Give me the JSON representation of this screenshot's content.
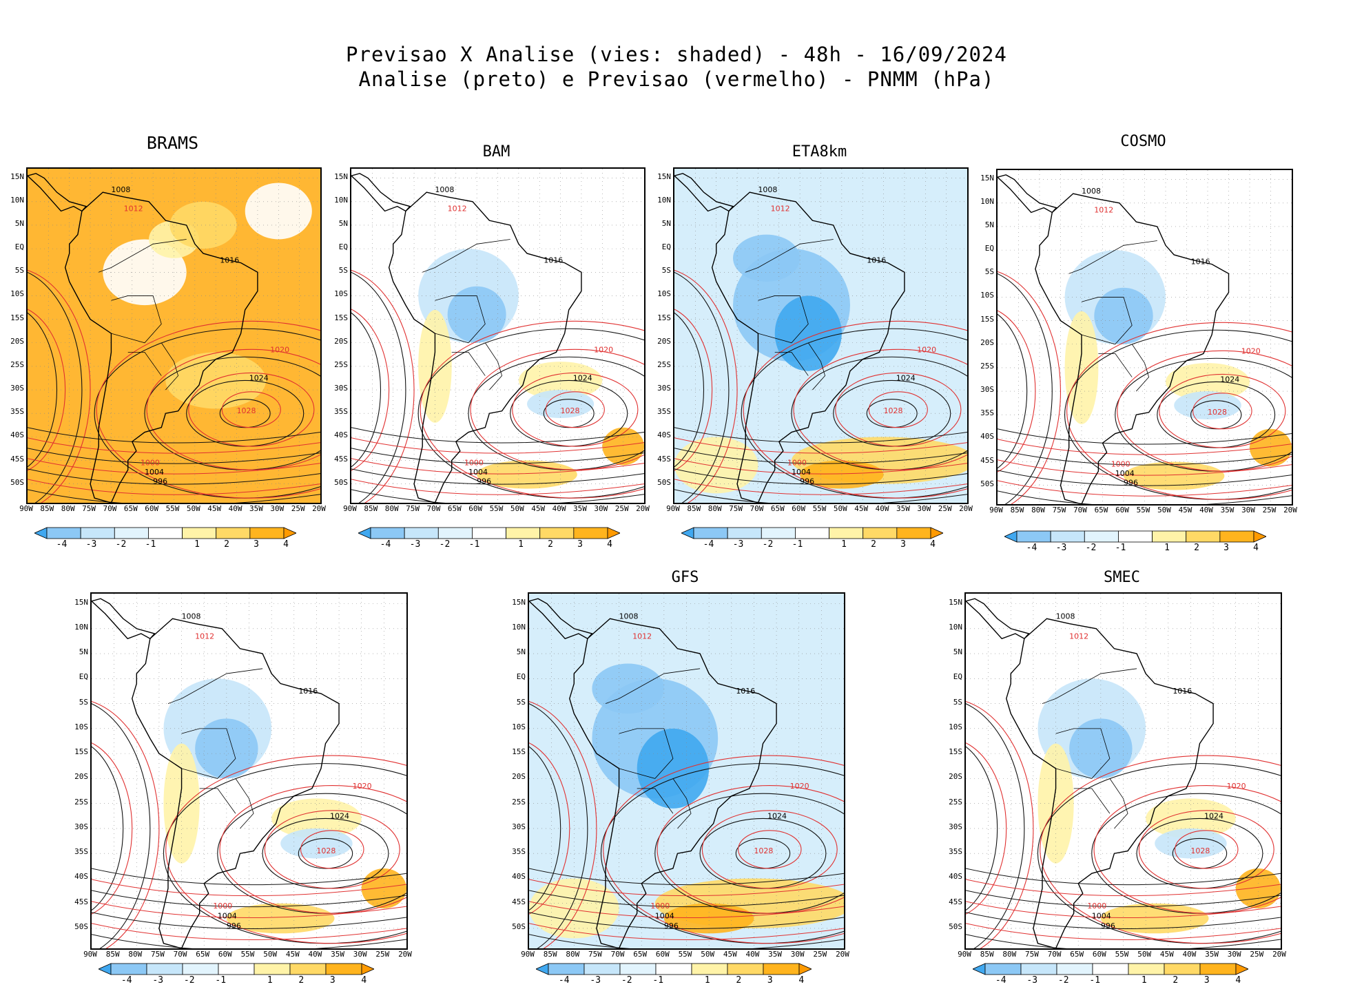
{
  "header": {
    "line1": "Previsao X Analise (vies: shaded) - 48h - 16/09/2024",
    "line2": "Analise (preto) e Previsao (vermelho) - PNMM (hPa)"
  },
  "lat_labels": [
    "15N",
    "10N",
    "5N",
    "EQ",
    "5S",
    "10S",
    "15S",
    "20S",
    "25S",
    "30S",
    "35S",
    "40S",
    "45S",
    "50S"
  ],
  "lon_labels": [
    "90W",
    "85W",
    "80W",
    "75W",
    "70W",
    "65W",
    "60W",
    "55W",
    "50W",
    "45W",
    "40W",
    "35W",
    "30W",
    "25W",
    "20W"
  ],
  "colorbar": {
    "labels": [
      "-4",
      "-3",
      "-2",
      "-1",
      "1",
      "2",
      "3",
      "4"
    ],
    "colors": [
      "#40a8f0",
      "#8cc8f5",
      "#c6e6fa",
      "#e2f4fd",
      "#ffffff",
      "#fff3a8",
      "#ffd966",
      "#ffb41e",
      "#ff9a00"
    ]
  },
  "panels": [
    {
      "name": "BRAMS",
      "bias": "warm"
    },
    {
      "name": "BAM",
      "bias": "mixed"
    },
    {
      "name": "ETA8km",
      "bias": "cold"
    },
    {
      "name": "COSMO",
      "bias": "mixed"
    },
    {
      "name": "",
      "bias": "mixed"
    },
    {
      "name": "GFS",
      "bias": "cold"
    },
    {
      "name": "SMEC",
      "bias": "mixed"
    }
  ],
  "contour_labels": [
    "1008",
    "1012",
    "1016",
    "1020",
    "1024",
    "1028",
    "1004",
    "1000",
    "996"
  ]
}
